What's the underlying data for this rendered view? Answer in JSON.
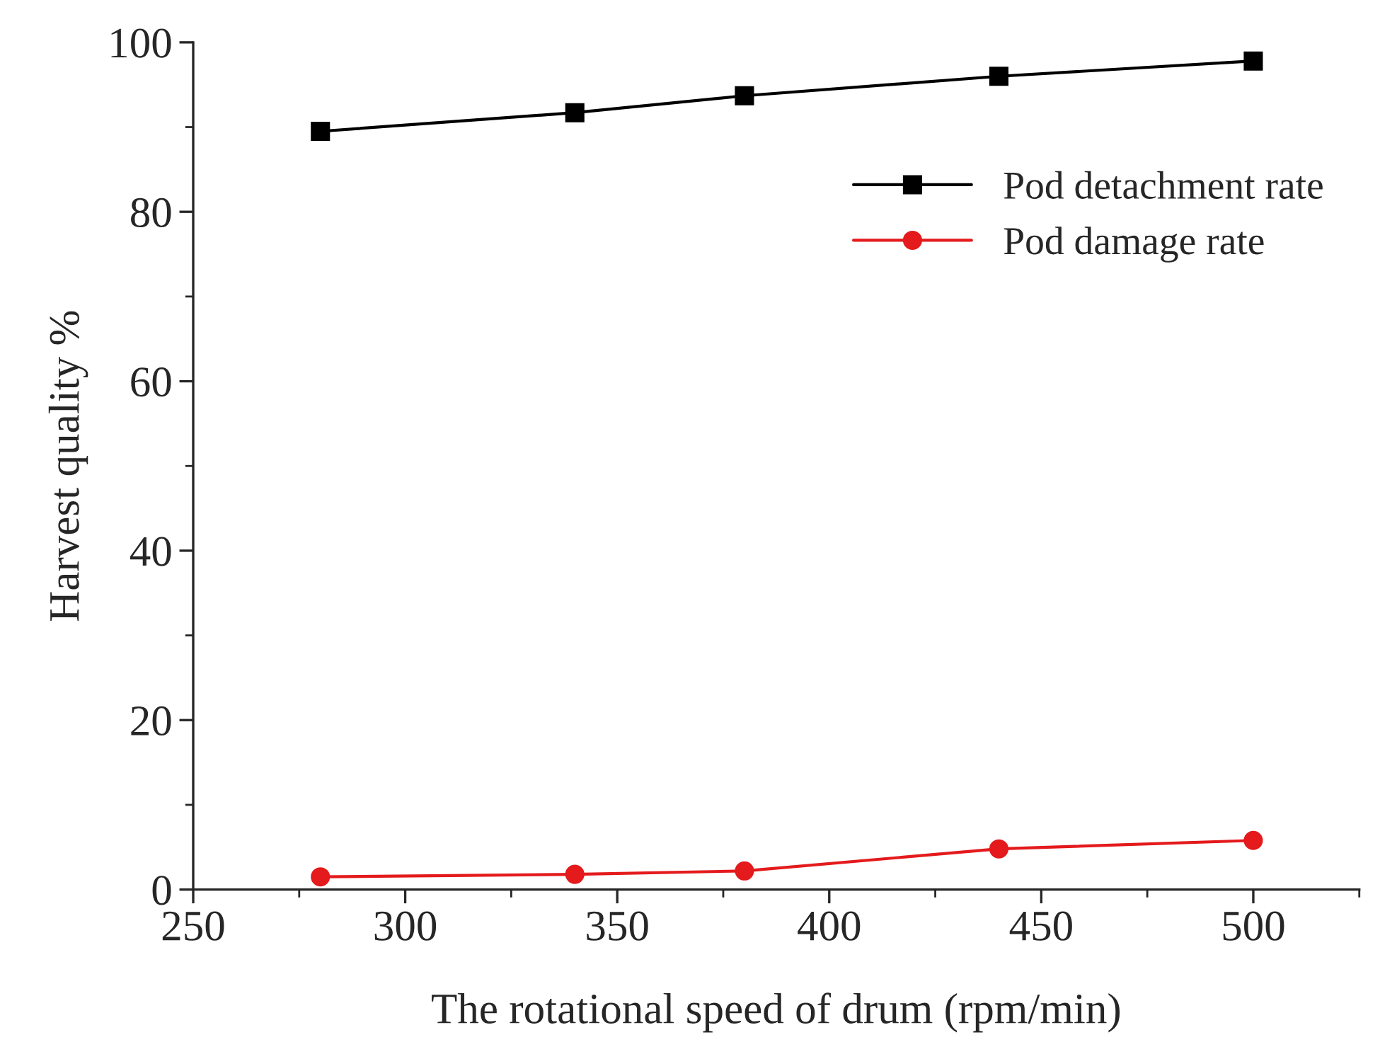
{
  "chart_data": {
    "type": "line",
    "xlabel": "The rotational speed of drum (rpm/min)",
    "ylabel": "Harvest quality %",
    "x": [
      280,
      340,
      380,
      440,
      500
    ],
    "series": [
      {
        "name": "Pod detachment rate",
        "color": "#000000",
        "marker": "square",
        "values": [
          89.5,
          91.7,
          93.7,
          96.0,
          97.8
        ]
      },
      {
        "name": "Pod damage rate",
        "color": "#e41a1c",
        "marker": "circle",
        "values": [
          1.5,
          1.8,
          2.2,
          4.8,
          5.8
        ]
      }
    ],
    "xlim": [
      250,
      525
    ],
    "xticks": [
      250,
      300,
      350,
      400,
      450,
      500
    ],
    "ylim": [
      0,
      100
    ],
    "yticks": [
      0,
      20,
      40,
      60,
      80,
      100
    ],
    "grid": false,
    "legend": "top right",
    "line_style": "solid"
  }
}
